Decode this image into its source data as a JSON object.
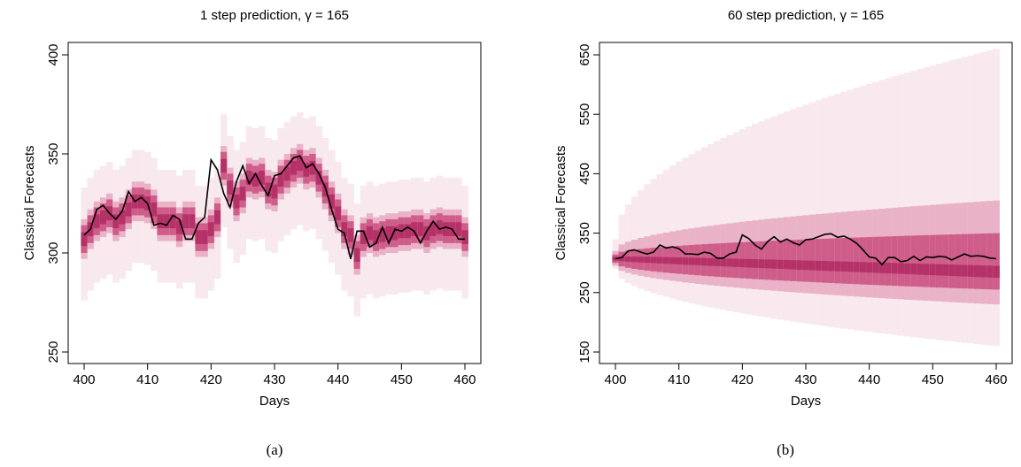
{
  "chart_data": [
    {
      "type": "fan",
      "panel": "a",
      "title": "1 step prediction, γ = 165",
      "xlabel": "Days",
      "ylabel": "Classical Forecasts",
      "xlim": [
        400,
        460
      ],
      "ylim": [
        250,
        400
      ],
      "xticks": [
        400,
        410,
        420,
        430,
        440,
        450,
        460
      ],
      "yticks": [
        250,
        300,
        350,
        400
      ],
      "grid": false,
      "legend": "none",
      "caption": "(a)",
      "colors": {
        "band_outer": "#f6e3eb",
        "band_mid": "#e6a8c0",
        "band_inner": "#c94e7f",
        "band_core": "#b02a62",
        "median": "#000000"
      },
      "quantile_spread": {
        "outer": [
          31,
          26
        ],
        "mid": [
          10,
          10
        ],
        "inner": [
          7,
          7
        ],
        "core": [
          3.5,
          3.5
        ]
      },
      "x": [
        400,
        401,
        402,
        403,
        404,
        405,
        406,
        407,
        408,
        409,
        410,
        411,
        412,
        413,
        414,
        415,
        416,
        417,
        418,
        419,
        420,
        421,
        422,
        423,
        424,
        425,
        426,
        427,
        428,
        429,
        430,
        431,
        432,
        433,
        434,
        435,
        436,
        437,
        438,
        439,
        440,
        441,
        442,
        443,
        444,
        445,
        446,
        447,
        448,
        449,
        450,
        451,
        452,
        453,
        454,
        455,
        456,
        457,
        458,
        459,
        460
      ],
      "center": [
        307,
        312,
        316,
        318,
        320,
        316,
        318,
        322,
        326,
        326,
        325,
        322,
        316,
        316,
        316,
        313,
        316,
        316,
        308,
        308,
        312,
        318,
        344,
        333,
        326,
        330,
        338,
        337,
        338,
        332,
        331,
        337,
        340,
        343,
        345,
        342,
        343,
        338,
        332,
        326,
        320,
        312,
        309,
        299,
        308,
        310,
        308,
        309,
        310,
        310,
        311,
        311,
        312,
        312,
        310,
        312,
        313,
        312,
        312,
        312,
        308
      ],
      "observed": [
        309,
        312,
        322,
        324,
        320,
        317,
        321,
        331,
        326,
        328,
        325,
        314,
        315,
        314,
        319,
        317,
        307,
        307,
        315,
        318,
        347,
        342,
        330,
        323,
        336,
        344,
        335,
        340,
        334,
        329,
        339,
        340,
        344,
        348,
        349,
        343,
        345,
        340,
        333,
        322,
        312,
        310,
        297,
        311,
        311,
        303,
        305,
        313,
        305,
        312,
        311,
        313,
        311,
        305,
        311,
        316,
        312,
        313,
        312,
        307,
        307
      ]
    },
    {
      "type": "fan",
      "panel": "b",
      "title": "60 step prediction, γ = 165",
      "xlabel": "Days",
      "ylabel": "Classical Forecasts",
      "xlim": [
        400,
        460
      ],
      "ylim": [
        150,
        650
      ],
      "xticks": [
        400,
        410,
        420,
        430,
        440,
        450,
        460
      ],
      "yticks": [
        150,
        250,
        350,
        450,
        550,
        650
      ],
      "grid": false,
      "legend": "none",
      "caption": "(b)",
      "colors": {
        "band_outer": "#f6e3eb",
        "band_mid": "#e6a8c0",
        "band_inner": "#c94e7f",
        "band_core": "#b02a62",
        "median": "#000000"
      },
      "x": [
        400,
        401,
        402,
        403,
        404,
        405,
        406,
        407,
        408,
        409,
        410,
        411,
        412,
        413,
        414,
        415,
        416,
        417,
        418,
        419,
        420,
        421,
        422,
        423,
        424,
        425,
        426,
        427,
        428,
        429,
        430,
        431,
        432,
        433,
        434,
        435,
        436,
        437,
        438,
        439,
        440,
        441,
        442,
        443,
        444,
        445,
        446,
        447,
        448,
        449,
        450,
        451,
        452,
        453,
        454,
        455,
        456,
        457,
        458,
        459,
        460
      ],
      "observed": [
        307,
        309,
        320,
        322,
        318,
        315,
        318,
        330,
        325,
        327,
        324,
        315,
        315,
        314,
        318,
        316,
        308,
        308,
        315,
        318,
        347,
        341,
        330,
        323,
        336,
        344,
        335,
        340,
        334,
        330,
        339,
        340,
        344,
        348,
        349,
        343,
        345,
        340,
        333,
        322,
        310,
        308,
        297,
        309,
        309,
        302,
        304,
        311,
        304,
        310,
        309,
        311,
        310,
        305,
        310,
        315,
        311,
        312,
        311,
        308,
        307
      ],
      "median_start": 307,
      "median_end": 285,
      "outer_upper_start": 340,
      "outer_upper_end": 660,
      "outer_lower_start": 290,
      "outer_lower_end": 160,
      "mid_upper_start": 320,
      "mid_upper_end": 405,
      "mid_lower_start": 295,
      "mid_lower_end": 230,
      "inner_upper_start": 314,
      "inner_upper_end": 350,
      "inner_lower_start": 300,
      "inner_lower_end": 255
    }
  ]
}
